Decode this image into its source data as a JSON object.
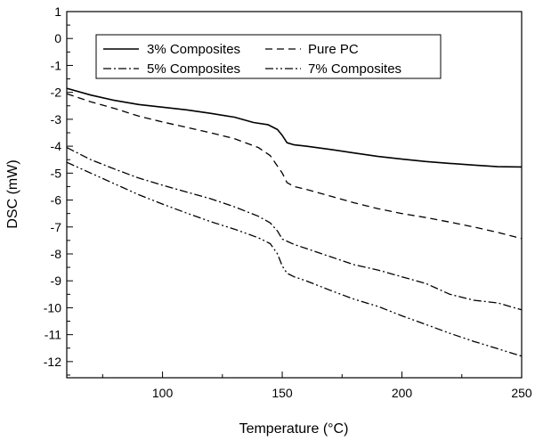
{
  "chart_data": {
    "type": "line",
    "title": "",
    "xlabel": "Temperature (°C)",
    "xlabel_prefix": "Temperature (",
    "xlabel_unit": "°C",
    "xlabel_suffix": ")",
    "ylabel": "DSC (mW)",
    "xlim": [
      60,
      250
    ],
    "ylim": [
      -12.6,
      1
    ],
    "x_ticks": [
      100,
      150,
      200,
      250
    ],
    "y_ticks": [
      1,
      0,
      -1,
      -2,
      -3,
      -4,
      -5,
      -6,
      -7,
      -8,
      -9,
      -10,
      -11,
      -12
    ],
    "grid": false,
    "legend_position": "top-left",
    "series": [
      {
        "name": "3% Composites",
        "dash": "solid",
        "x": [
          60,
          70,
          80,
          90,
          100,
          110,
          120,
          130,
          138,
          144,
          148,
          150,
          152,
          155,
          160,
          170,
          180,
          190,
          200,
          210,
          220,
          230,
          240,
          250
        ],
        "y": [
          -1.85,
          -2.1,
          -2.3,
          -2.45,
          -2.55,
          -2.65,
          -2.78,
          -2.92,
          -3.12,
          -3.2,
          -3.38,
          -3.6,
          -3.87,
          -3.95,
          -4.0,
          -4.12,
          -4.25,
          -4.38,
          -4.48,
          -4.57,
          -4.64,
          -4.7,
          -4.76,
          -4.77
        ]
      },
      {
        "name": "Pure PC",
        "dash": "dash",
        "x": [
          60,
          70,
          80,
          90,
          100,
          110,
          120,
          130,
          140,
          145,
          150,
          152,
          155,
          160,
          170,
          180,
          190,
          200,
          210,
          220,
          230,
          240,
          250
        ],
        "y": [
          -2.05,
          -2.35,
          -2.6,
          -2.88,
          -3.1,
          -3.3,
          -3.5,
          -3.72,
          -4.05,
          -4.35,
          -5.0,
          -5.35,
          -5.5,
          -5.6,
          -5.85,
          -6.1,
          -6.32,
          -6.5,
          -6.65,
          -6.82,
          -7.0,
          -7.2,
          -7.43
        ]
      },
      {
        "name": "5% Composites",
        "dash": "dashdot",
        "x": [
          60,
          70,
          80,
          90,
          100,
          110,
          120,
          130,
          140,
          145,
          148,
          150,
          155,
          160,
          170,
          180,
          190,
          200,
          210,
          220,
          230,
          240,
          250
        ],
        "y": [
          -4.05,
          -4.5,
          -4.85,
          -5.18,
          -5.45,
          -5.7,
          -5.95,
          -6.25,
          -6.6,
          -6.85,
          -7.15,
          -7.45,
          -7.65,
          -7.8,
          -8.1,
          -8.4,
          -8.6,
          -8.85,
          -9.1,
          -9.5,
          -9.72,
          -9.82,
          -10.08
        ]
      },
      {
        "name": "7% Composites",
        "dash": "dashdotdot",
        "x": [
          60,
          70,
          80,
          90,
          100,
          110,
          120,
          130,
          140,
          145,
          148,
          150,
          152,
          155,
          160,
          170,
          180,
          190,
          200,
          210,
          220,
          230,
          240,
          250
        ],
        "y": [
          -4.6,
          -5.0,
          -5.4,
          -5.8,
          -6.15,
          -6.48,
          -6.8,
          -7.08,
          -7.4,
          -7.62,
          -8.0,
          -8.45,
          -8.72,
          -8.85,
          -9.0,
          -9.35,
          -9.68,
          -9.95,
          -10.3,
          -10.62,
          -10.95,
          -11.25,
          -11.52,
          -11.8
        ]
      }
    ]
  }
}
